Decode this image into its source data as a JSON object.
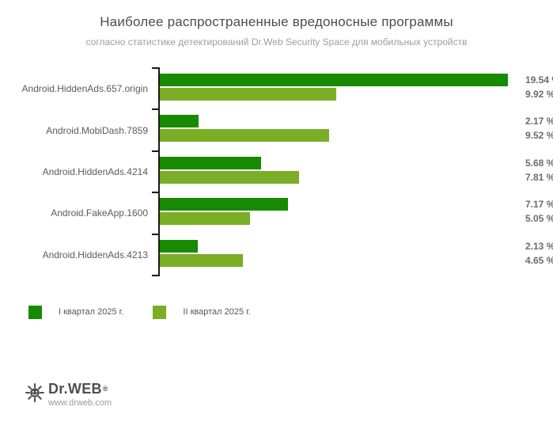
{
  "title": "Наиболее распространенные вредоносные программы",
  "subtitle": "согласно статистике детектирований Dr.Web Security Space для мобильных устройств",
  "colors": {
    "q1_green": "#188a01",
    "q2_green": "#7aae25",
    "axis": "#1a1a1a",
    "title_text": "#4c4c4c",
    "subtitle_text": "#9e9e9e",
    "category_text": "#5b5b5b",
    "value_text": "#6b6b6b"
  },
  "chart_data": {
    "type": "bar",
    "orientation": "horizontal",
    "title": "Наиболее распространенные вредоносные программы",
    "subtitle": "согласно статистике детектирований Dr.Web Security Space для мобильных устройств",
    "unit": "%",
    "xlim": [
      0,
      19.54
    ],
    "grid": false,
    "legend_position": "bottom-left",
    "categories": [
      "Android.HiddenAds.657.origin",
      "Android.MobiDash.7859",
      "Android.HiddenAds.4214",
      "Android.FakeApp.1600",
      "Android.HiddenAds.4213"
    ],
    "series": [
      {
        "name": "I квартал 2025 г.",
        "color": "#188a01",
        "values": [
          19.54,
          2.17,
          5.68,
          7.17,
          2.13
        ]
      },
      {
        "name": "II квартал 2025 г.",
        "color": "#7aae25",
        "values": [
          9.92,
          9.52,
          7.81,
          5.05,
          4.65
        ]
      }
    ],
    "value_label_format": "{value} %"
  },
  "legend": {
    "items": [
      {
        "label": "I квартал 2025 г.",
        "color": "#188a01"
      },
      {
        "label": "II квартал 2025 г.",
        "color": "#7aae25"
      }
    ]
  },
  "footer": {
    "brand": "Dr.WEB",
    "registered_mark": "®",
    "website": "www.drweb.com"
  }
}
